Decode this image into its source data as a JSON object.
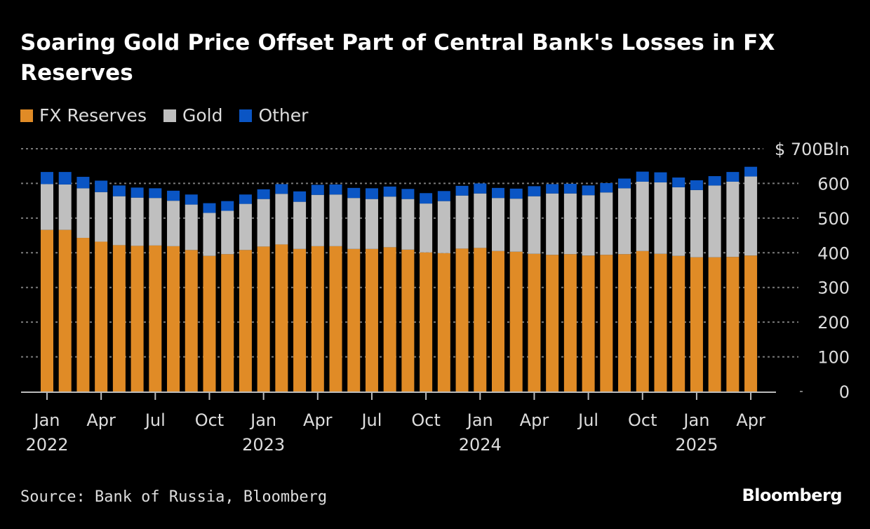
{
  "header": {
    "title": "Soaring Gold Price Offset Part of Central Bank's Losses in FX Reserves"
  },
  "legend": [
    {
      "label": "FX Reserves",
      "color": "#e08b26"
    },
    {
      "label": "Gold",
      "color": "#bfbfbf"
    },
    {
      "label": "Other",
      "color": "#0a55c4"
    }
  ],
  "footer": {
    "source": "Source: Bank of Russia, Bloomberg",
    "brand": "Bloomberg"
  },
  "chart_data": {
    "type": "bar",
    "stacked": true,
    "title": "Soaring Gold Price Offset Part of Central Bank's Losses in FX Reserves",
    "xlabel": "",
    "ylabel": "",
    "y_unit_label": "$ 700Bln",
    "ylim": [
      0,
      700
    ],
    "yticks": [
      0,
      100,
      200,
      300,
      400,
      500,
      600,
      700
    ],
    "ytick_labels": [
      "0",
      "100",
      "200",
      "300",
      "400",
      "500",
      "600",
      "$ 700Bln"
    ],
    "grid": true,
    "legend_position": "top-left",
    "categories": [
      "2022-01",
      "2022-02",
      "2022-03",
      "2022-04",
      "2022-05",
      "2022-06",
      "2022-07",
      "2022-08",
      "2022-09",
      "2022-10",
      "2022-11",
      "2022-12",
      "2023-01",
      "2023-02",
      "2023-03",
      "2023-04",
      "2023-05",
      "2023-06",
      "2023-07",
      "2023-08",
      "2023-09",
      "2023-10",
      "2023-11",
      "2023-12",
      "2024-01",
      "2024-02",
      "2024-03",
      "2024-04",
      "2024-05",
      "2024-06",
      "2024-07",
      "2024-08",
      "2024-09",
      "2024-10",
      "2024-11",
      "2024-12",
      "2025-01",
      "2025-02",
      "2025-03",
      "2025-04"
    ],
    "xtick_labels": [
      {
        "index": 0,
        "month": "Jan",
        "year": "2022"
      },
      {
        "index": 3,
        "month": "Apr",
        "year": ""
      },
      {
        "index": 6,
        "month": "Jul",
        "year": ""
      },
      {
        "index": 9,
        "month": "Oct",
        "year": ""
      },
      {
        "index": 12,
        "month": "Jan",
        "year": "2023"
      },
      {
        "index": 15,
        "month": "Apr",
        "year": ""
      },
      {
        "index": 18,
        "month": "Jul",
        "year": ""
      },
      {
        "index": 21,
        "month": "Oct",
        "year": ""
      },
      {
        "index": 24,
        "month": "Jan",
        "year": "2024"
      },
      {
        "index": 27,
        "month": "Apr",
        "year": ""
      },
      {
        "index": 30,
        "month": "Jul",
        "year": ""
      },
      {
        "index": 33,
        "month": "Oct",
        "year": ""
      },
      {
        "index": 36,
        "month": "Jan",
        "year": "2025"
      },
      {
        "index": 39,
        "month": "Apr",
        "year": ""
      }
    ],
    "series": [
      {
        "name": "FX Reserves",
        "color": "#e08b26",
        "values": [
          466,
          466,
          443,
          432,
          422,
          420,
          421,
          419,
          408,
          391,
          396,
          408,
          418,
          424,
          411,
          419,
          419,
          411,
          411,
          416,
          409,
          401,
          399,
          412,
          414,
          405,
          403,
          397,
          394,
          396,
          392,
          394,
          396,
          405,
          397,
          391,
          387,
          387,
          388,
          392
        ]
      },
      {
        "name": "Gold",
        "color": "#bfbfbf",
        "values": [
          132,
          131,
          143,
          143,
          141,
          139,
          137,
          131,
          131,
          124,
          125,
          133,
          137,
          146,
          136,
          148,
          149,
          147,
          144,
          146,
          146,
          141,
          150,
          153,
          157,
          153,
          153,
          166,
          177,
          175,
          174,
          180,
          190,
          200,
          206,
          198,
          194,
          207,
          217,
          228
        ]
      },
      {
        "name": "Other",
        "color": "#0a55c4",
        "values": [
          35,
          36,
          33,
          33,
          31,
          29,
          28,
          29,
          29,
          28,
          28,
          27,
          28,
          28,
          30,
          29,
          29,
          29,
          31,
          29,
          29,
          30,
          29,
          28,
          29,
          29,
          29,
          29,
          27,
          28,
          28,
          27,
          28,
          29,
          29,
          28,
          28,
          27,
          28,
          28
        ]
      }
    ]
  }
}
